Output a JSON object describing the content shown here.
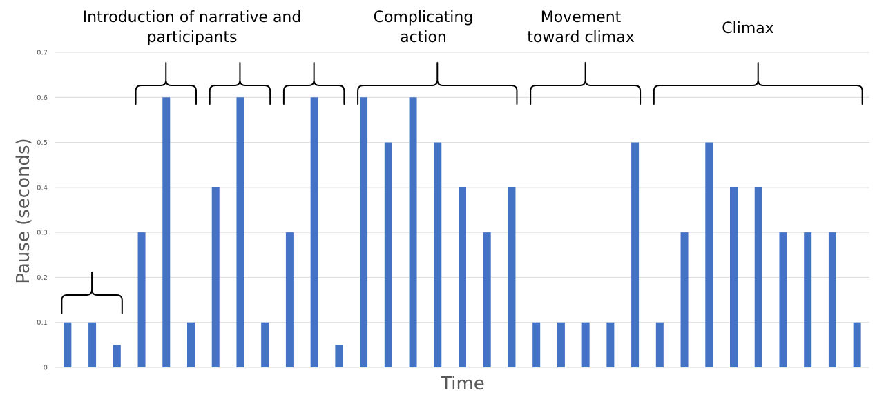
{
  "chart_data": {
    "type": "bar",
    "xlabel": "Time",
    "ylabel": "Pause (seconds)",
    "ylim": [
      0,
      0.7
    ],
    "yticks": [
      "0",
      "0.1",
      "0.2",
      "0.3",
      "0.4",
      "0.5",
      "0.6",
      "0.7"
    ],
    "grid": true,
    "bar_color": "#4472c4",
    "values": [
      0.1,
      0.1,
      0.05,
      0.3,
      0.6,
      0.1,
      0.4,
      0.6,
      0.1,
      0.3,
      0.6,
      0.05,
      0.6,
      0.5,
      0.6,
      0.5,
      0.4,
      0.3,
      0.4,
      0.1,
      0.1,
      0.1,
      0.1,
      0.5,
      0.1,
      0.3,
      0.5,
      0.4,
      0.4,
      0.3,
      0.3,
      0.3,
      0.1
    ],
    "annotations": [
      {
        "lines": [
          "Introduction of narrative and",
          "participants"
        ]
      },
      {
        "lines": [
          "Complicating",
          "action"
        ]
      },
      {
        "lines": [
          "Movement",
          "toward climax"
        ]
      },
      {
        "lines": [
          "Climax"
        ]
      }
    ]
  }
}
